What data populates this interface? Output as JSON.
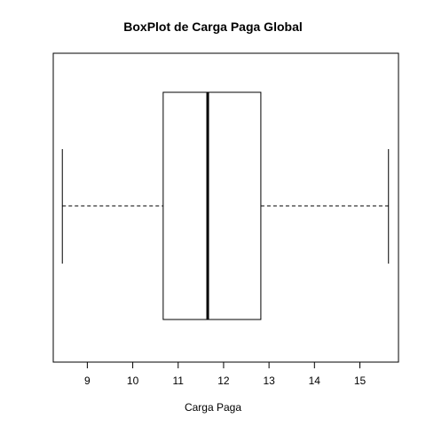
{
  "chart_data": {
    "type": "boxplot",
    "orientation": "horizontal",
    "title": "BoxPlot de Carga Paga Global",
    "xlabel": "Carga Paga",
    "ylabel": "",
    "xlim": [
      8.25,
      15.85
    ],
    "x_ticks": [
      9,
      10,
      11,
      12,
      13,
      14,
      15
    ],
    "grid": false,
    "box": {
      "whisker_low": 8.45,
      "q1": 10.67,
      "median": 11.65,
      "q3": 12.82,
      "whisker_high": 15.63
    }
  }
}
